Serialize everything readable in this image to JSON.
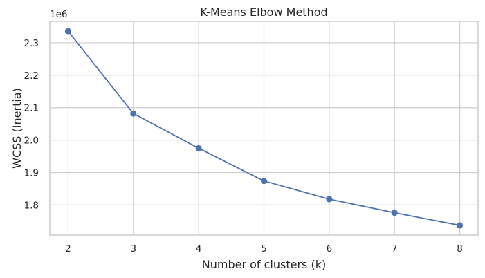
{
  "chart_data": {
    "type": "line",
    "title": "K-Means Elbow Method",
    "xlabel": "Number of clusters (k)",
    "ylabel": "WCSS (Inertia)",
    "offset_text": "1e6",
    "x": [
      2,
      3,
      4,
      5,
      6,
      7,
      8
    ],
    "series": [
      {
        "values": [
          2336000,
          2082000,
          1975000,
          1874000,
          1818000,
          1776000,
          1737000
        ]
      }
    ],
    "xticks": [
      "2",
      "3",
      "4",
      "5",
      "6",
      "7",
      "8"
    ],
    "yticks": [
      "1.8",
      "1.9",
      "2.0",
      "2.1",
      "2.2",
      "2.3"
    ],
    "ytick_values": [
      1800000,
      1900000,
      2000000,
      2100000,
      2200000,
      2300000
    ],
    "xlim": [
      1.72,
      8.28
    ],
    "ylim": [
      1707000,
      2366000
    ],
    "grid": true,
    "colors": {
      "series": "#4c72b0",
      "grid": "#cccccc",
      "text": "#262626"
    }
  }
}
